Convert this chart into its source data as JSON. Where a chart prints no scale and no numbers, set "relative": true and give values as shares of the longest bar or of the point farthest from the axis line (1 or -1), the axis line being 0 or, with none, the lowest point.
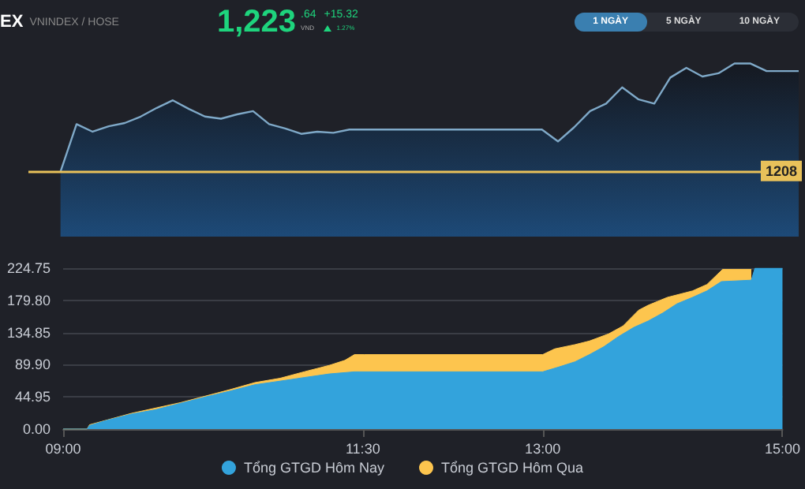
{
  "chart_data": [
    {
      "type": "area",
      "relative": true,
      "annotations": [
        "EX",
        "VNINDEX / HOSE",
        "1,223",
        ".64",
        "VND",
        "+15.32",
        "1.27%",
        "1 NGÀY",
        "5 NGÀY",
        "10 NGÀY",
        "1208"
      ],
      "categories": [
        null,
        null,
        null,
        null,
        null,
        null,
        null,
        null,
        null,
        null,
        null,
        null,
        null,
        null,
        null,
        null,
        null,
        null,
        null,
        null,
        null,
        null,
        null,
        null,
        null,
        null,
        null,
        null,
        null,
        null,
        null,
        null,
        null,
        null,
        null,
        null,
        null,
        null,
        null,
        null,
        null,
        null,
        null,
        null,
        null,
        null,
        null,
        null,
        null
      ],
      "series": [
        {
          "color": "#7fa9c8",
          "values": [
            null,
            null,
            0,
            0.44,
            0.37,
            0.42,
            0.45,
            0.51,
            0.59,
            0.66,
            0.58,
            0.51,
            0.49,
            0.53,
            0.56,
            0.44,
            0.4,
            0.35,
            0.37,
            0.36,
            0.39,
            0.39,
            0.39,
            0.39,
            0.39,
            0.39,
            0.39,
            0.39,
            0.39,
            0.39,
            0.39,
            0.39,
            0.39,
            0.28,
            0.41,
            0.56,
            0.63,
            0.78,
            0.67,
            0.63,
            0.87,
            0.96,
            0.88,
            0.91,
            1,
            1,
            0.93,
            0.93,
            0.93
          ]
        }
      ],
      "ref_lines": [
        {
          "axis": "y",
          "value": 0,
          "color": "#e8c15a"
        }
      ]
    },
    {
      "type": "area",
      "series": [
        {
          "name": "Tổng GTGD Hôm Nay",
          "color": "#33a3dc",
          "x": [
            9.0,
            9.2,
            9.22,
            9.36,
            9.57,
            9.77,
            9.98,
            10.19,
            10.39,
            10.6,
            10.81,
            11.01,
            11.22,
            11.43,
            11.47,
            13.0,
            13.14,
            13.27,
            13.39,
            13.51,
            13.63,
            13.76,
            13.88,
            14.0,
            14.12,
            14.25,
            14.37,
            14.49,
            14.74,
            14.77,
            15.0
          ],
          "values": [
            0,
            0,
            5,
            12,
            21,
            27,
            36,
            45,
            53,
            62,
            67,
            72,
            77,
            80,
            80,
            80,
            87,
            94,
            104,
            115,
            129,
            142,
            151,
            162,
            175,
            184,
            193,
            206,
            208,
            224.75,
            224.75
          ]
        },
        {
          "name": "Tổng GTGD Hôm Qua",
          "color": "#fdc54e",
          "x": [
            9.0,
            9.2,
            9.22,
            9.57,
            9.98,
            10.39,
            10.6,
            10.81,
            11.01,
            11.22,
            11.35,
            11.43,
            11.51,
            13.0,
            13.1,
            13.27,
            13.39,
            13.55,
            13.67,
            13.8,
            13.88,
            14.04,
            14.25,
            14.37,
            14.5,
            14.74
          ],
          "values": [
            0,
            0,
            6,
            22,
            37,
            55,
            65,
            71,
            80,
            89,
            96,
            104,
            104,
            104,
            112,
            118,
            123,
            133,
            144,
            166,
            173,
            184,
            193,
            202,
            223,
            223
          ]
        }
      ],
      "xlim": [
        9,
        15
      ],
      "xticks": [
        {
          "value": 9,
          "label": "09:00"
        },
        {
          "value": 11.5,
          "label": "11:30"
        },
        {
          "value": 13,
          "label": "13:00"
        },
        {
          "value": 15,
          "label": "15:00"
        }
      ],
      "ylim": [
        0,
        224.75
      ],
      "yticks": [
        {
          "value": 0,
          "label": "0.00"
        },
        44.95,
        {
          "value": 89.9,
          "label": "89.90"
        },
        134.85,
        {
          "value": 179.8,
          "label": "179.80"
        },
        224.75
      ],
      "grid": "y",
      "legend": "bottom"
    }
  ]
}
